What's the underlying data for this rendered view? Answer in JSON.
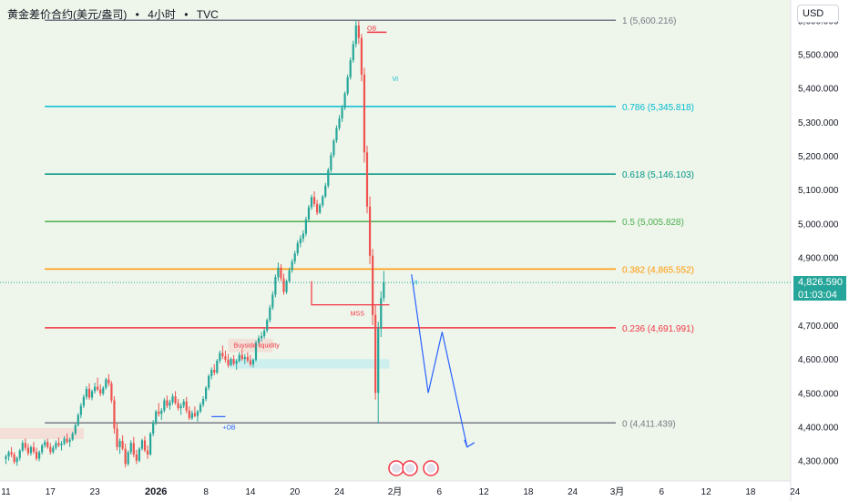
{
  "header": {
    "symbol": "黄金差价合约(美元/盎司)",
    "sep1": "•",
    "interval": "4小时",
    "sep2": "•",
    "source": "TVC"
  },
  "currency_button": "USD",
  "last_price": {
    "value": "4,826.590",
    "countdown": "01:03:04"
  },
  "colors": {
    "background": "#eef5ea",
    "up": "#26a69a",
    "down": "#ef5350",
    "fib_1": "#787b86",
    "fib_0786": "#00bcd4",
    "fib_0618": "#009688",
    "fib_05": "#4caf50",
    "fib_0382": "#ff9800",
    "fib_0236": "#f23645",
    "fib_0": "#787b86",
    "projection": "#2962ff"
  },
  "chart_data": {
    "type": "candlestick",
    "title": "黄金差价合约(美元/盎司) • 4小时 • TVC",
    "y_axis": {
      "ylim": [
        4240,
        5660
      ],
      "ticks": [
        5600,
        5500,
        5400,
        5300,
        5200,
        5100,
        5000,
        4900,
        4800,
        4700,
        4600,
        4500,
        4400,
        4300
      ],
      "tick_labels": [
        "5,600.000",
        "5,500.000",
        "5,400.000",
        "5,300.000",
        "5,200.000",
        "5,100.000",
        "5,000.000",
        "4,900.000",
        "",
        "4,700.000",
        "4,600.000",
        "4,500.000",
        "4,400.000",
        "4,300.000"
      ]
    },
    "x_axis": {
      "tick_labels": [
        "11",
        "17",
        "23",
        "2026",
        "8",
        "14",
        "20",
        "24",
        "2月",
        "6",
        "12",
        "18",
        "24",
        "3月",
        "6",
        "12",
        "18",
        "24"
      ],
      "tick_index": [
        0,
        16,
        32,
        54,
        72,
        88,
        104,
        120,
        140,
        156,
        172,
        188,
        204,
        220,
        236,
        252,
        268,
        284
      ]
    },
    "fib_levels": [
      {
        "ratio": "1",
        "value": 5600.216,
        "label": "1 (5,600.216)",
        "color_key": "fib_1"
      },
      {
        "ratio": "0.786",
        "value": 5345.818,
        "label": "0.786 (5,345.818)",
        "color_key": "fib_0786"
      },
      {
        "ratio": "0.618",
        "value": 5146.103,
        "label": "0.618 (5,146.103)",
        "color_key": "fib_0618"
      },
      {
        "ratio": "0.5",
        "value": 5005.828,
        "label": "0.5 (5,005.828)",
        "color_key": "fib_05"
      },
      {
        "ratio": "0.382",
        "value": 4865.552,
        "label": "0.382 (4,865.552)",
        "color_key": "fib_0382"
      },
      {
        "ratio": "0.236",
        "value": 4691.991,
        "label": "0.236 (4,691.991)",
        "color_key": "fib_0236"
      },
      {
        "ratio": "0",
        "value": 4411.439,
        "label": "0 (4,411.439)",
        "color_key": "fib_0"
      }
    ],
    "annotations": [
      {
        "text": "OB",
        "index": 130,
        "value": 5570,
        "color_key": "fib_0236"
      },
      {
        "text": "VI",
        "index": 139,
        "value": 5420,
        "color_key": "fib_0786"
      },
      {
        "text": "VI",
        "index": 146,
        "value": 4820,
        "color_key": "fib_0786"
      },
      {
        "text": "MSS",
        "index": 124,
        "value": 4728,
        "color_key": "fib_0236"
      },
      {
        "text": "Buyside liquidity",
        "index": 82,
        "value": 4634,
        "color_key": "fib_0236"
      },
      {
        "text": "+OB",
        "index": 78,
        "value": 4392,
        "color_key": "projection"
      }
    ],
    "projection_path": [
      {
        "index": 146,
        "value": 4850
      },
      {
        "index": 152,
        "value": 4500
      },
      {
        "index": 157,
        "value": 4680
      },
      {
        "index": 166,
        "value": 4340
      }
    ],
    "candles": [
      [
        4305,
        4318,
        4290,
        4312
      ],
      [
        4312,
        4330,
        4300,
        4325
      ],
      [
        4325,
        4340,
        4310,
        4318
      ],
      [
        4318,
        4325,
        4290,
        4296
      ],
      [
        4296,
        4312,
        4285,
        4308
      ],
      [
        4308,
        4335,
        4300,
        4330
      ],
      [
        4330,
        4360,
        4325,
        4352
      ],
      [
        4352,
        4365,
        4330,
        4338
      ],
      [
        4338,
        4350,
        4315,
        4322
      ],
      [
        4322,
        4345,
        4315,
        4340
      ],
      [
        4340,
        4355,
        4320,
        4326
      ],
      [
        4326,
        4338,
        4300,
        4306
      ],
      [
        4306,
        4330,
        4298,
        4325
      ],
      [
        4325,
        4350,
        4318,
        4345
      ],
      [
        4345,
        4362,
        4338,
        4355
      ],
      [
        4355,
        4365,
        4335,
        4340
      ],
      [
        4340,
        4352,
        4318,
        4325
      ],
      [
        4325,
        4345,
        4320,
        4338
      ],
      [
        4338,
        4360,
        4332,
        4352
      ],
      [
        4352,
        4368,
        4340,
        4345
      ],
      [
        4345,
        4358,
        4330,
        4350
      ],
      [
        4350,
        4372,
        4345,
        4365
      ],
      [
        4365,
        4380,
        4350,
        4355
      ],
      [
        4355,
        4368,
        4340,
        4362
      ],
      [
        4362,
        4385,
        4358,
        4380
      ],
      [
        4380,
        4410,
        4375,
        4405
      ],
      [
        4405,
        4440,
        4400,
        4435
      ],
      [
        4435,
        4470,
        4425,
        4462
      ],
      [
        4462,
        4495,
        4455,
        4488
      ],
      [
        4488,
        4520,
        4480,
        4512
      ],
      [
        4512,
        4528,
        4480,
        4486
      ],
      [
        4486,
        4510,
        4478,
        4505
      ],
      [
        4505,
        4530,
        4498,
        4518
      ],
      [
        4518,
        4545,
        4505,
        4510
      ],
      [
        4510,
        4525,
        4490,
        4498
      ],
      [
        4498,
        4520,
        4492,
        4515
      ],
      [
        4515,
        4545,
        4510,
        4540
      ],
      [
        4540,
        4555,
        4520,
        4528
      ],
      [
        4528,
        4535,
        4470,
        4478
      ],
      [
        4478,
        4490,
        4380,
        4395
      ],
      [
        4395,
        4410,
        4330,
        4340
      ],
      [
        4340,
        4365,
        4320,
        4358
      ],
      [
        4358,
        4375,
        4330,
        4335
      ],
      [
        4335,
        4350,
        4280,
        4290
      ],
      [
        4290,
        4330,
        4285,
        4325
      ],
      [
        4325,
        4360,
        4318,
        4352
      ],
      [
        4352,
        4370,
        4310,
        4318
      ],
      [
        4318,
        4332,
        4290,
        4300
      ],
      [
        4300,
        4340,
        4295,
        4335
      ],
      [
        4335,
        4365,
        4330,
        4360
      ],
      [
        4360,
        4372,
        4325,
        4330
      ],
      [
        4330,
        4345,
        4305,
        4318
      ],
      [
        4318,
        4385,
        4315,
        4380
      ],
      [
        4380,
        4420,
        4372,
        4412
      ],
      [
        4412,
        4450,
        4405,
        4445
      ],
      [
        4445,
        4470,
        4430,
        4438
      ],
      [
        4438,
        4455,
        4420,
        4448
      ],
      [
        4448,
        4485,
        4442,
        4478
      ],
      [
        4478,
        4492,
        4455,
        4462
      ],
      [
        4462,
        4480,
        4450,
        4472
      ],
      [
        4472,
        4498,
        4465,
        4490
      ],
      [
        4490,
        4505,
        4465,
        4470
      ],
      [
        4470,
        4482,
        4448,
        4455
      ],
      [
        4455,
        4470,
        4435,
        4462
      ],
      [
        4462,
        4482,
        4455,
        4475
      ],
      [
        4475,
        4488,
        4440,
        4448
      ],
      [
        4448,
        4460,
        4420,
        4425
      ],
      [
        4425,
        4448,
        4420,
        4440
      ],
      [
        4440,
        4460,
        4428,
        4432
      ],
      [
        4432,
        4450,
        4415,
        4445
      ],
      [
        4445,
        4472,
        4440,
        4465
      ],
      [
        4465,
        4490,
        4458,
        4482
      ],
      [
        4482,
        4520,
        4475,
        4515
      ],
      [
        4515,
        4555,
        4508,
        4550
      ],
      [
        4550,
        4575,
        4540,
        4568
      ],
      [
        4568,
        4585,
        4552,
        4560
      ],
      [
        4560,
        4600,
        4555,
        4595
      ],
      [
        4595,
        4625,
        4588,
        4618
      ],
      [
        4618,
        4640,
        4600,
        4608
      ],
      [
        4608,
        4625,
        4590,
        4598
      ],
      [
        4598,
        4615,
        4575,
        4582
      ],
      [
        4582,
        4605,
        4578,
        4600
      ],
      [
        4600,
        4612,
        4580,
        4586
      ],
      [
        4586,
        4600,
        4568,
        4594
      ],
      [
        4594,
        4620,
        4590,
        4612
      ],
      [
        4612,
        4628,
        4595,
        4600
      ],
      [
        4600,
        4615,
        4585,
        4606
      ],
      [
        4606,
        4620,
        4590,
        4596
      ],
      [
        4596,
        4612,
        4578,
        4584
      ],
      [
        4584,
        4602,
        4575,
        4598
      ],
      [
        4598,
        4655,
        4592,
        4648
      ],
      [
        4648,
        4670,
        4640,
        4662
      ],
      [
        4662,
        4680,
        4652,
        4668
      ],
      [
        4668,
        4690,
        4660,
        4684
      ],
      [
        4684,
        4720,
        4678,
        4715
      ],
      [
        4715,
        4760,
        4708,
        4752
      ],
      [
        4752,
        4800,
        4745,
        4790
      ],
      [
        4790,
        4850,
        4782,
        4842
      ],
      [
        4842,
        4885,
        4830,
        4870
      ],
      [
        4870,
        4880,
        4830,
        4838
      ],
      [
        4838,
        4852,
        4790,
        4798
      ],
      [
        4798,
        4835,
        4792,
        4830
      ],
      [
        4830,
        4870,
        4825,
        4862
      ],
      [
        4862,
        4895,
        4855,
        4888
      ],
      [
        4888,
        4920,
        4880,
        4912
      ],
      [
        4912,
        4950,
        4905,
        4942
      ],
      [
        4942,
        4965,
        4930,
        4955
      ],
      [
        4955,
        4980,
        4945,
        4970
      ],
      [
        4970,
        5020,
        4962,
        5012
      ],
      [
        5012,
        5055,
        5005,
        5048
      ],
      [
        5048,
        5085,
        5040,
        5078
      ],
      [
        5078,
        5095,
        5050,
        5058
      ],
      [
        5058,
        5070,
        5025,
        5032
      ],
      [
        5032,
        5060,
        5028,
        5054
      ],
      [
        5054,
        5085,
        5048,
        5080
      ],
      [
        5080,
        5120,
        5075,
        5112
      ],
      [
        5112,
        5165,
        5105,
        5158
      ],
      [
        5158,
        5210,
        5150,
        5202
      ],
      [
        5202,
        5250,
        5195,
        5245
      ],
      [
        5245,
        5290,
        5238,
        5282
      ],
      [
        5282,
        5320,
        5275,
        5310
      ],
      [
        5310,
        5350,
        5300,
        5342
      ],
      [
        5342,
        5390,
        5335,
        5384
      ],
      [
        5384,
        5440,
        5378,
        5432
      ],
      [
        5432,
        5490,
        5425,
        5482
      ],
      [
        5482,
        5540,
        5475,
        5530
      ],
      [
        5530,
        5600,
        5520,
        5585
      ],
      [
        5585,
        5598,
        5530,
        5548
      ],
      [
        5548,
        5560,
        5420,
        5440
      ],
      [
        5440,
        5460,
        5180,
        5210
      ],
      [
        5210,
        5230,
        5030,
        5050
      ],
      [
        5050,
        5080,
        4880,
        4905
      ],
      [
        4905,
        4925,
        4700,
        4730
      ],
      [
        4730,
        4760,
        4480,
        4500
      ],
      [
        4500,
        4710,
        4410,
        4690
      ],
      [
        4690,
        4800,
        4665,
        4780
      ],
      [
        4780,
        4860,
        4770,
        4826
      ]
    ]
  }
}
